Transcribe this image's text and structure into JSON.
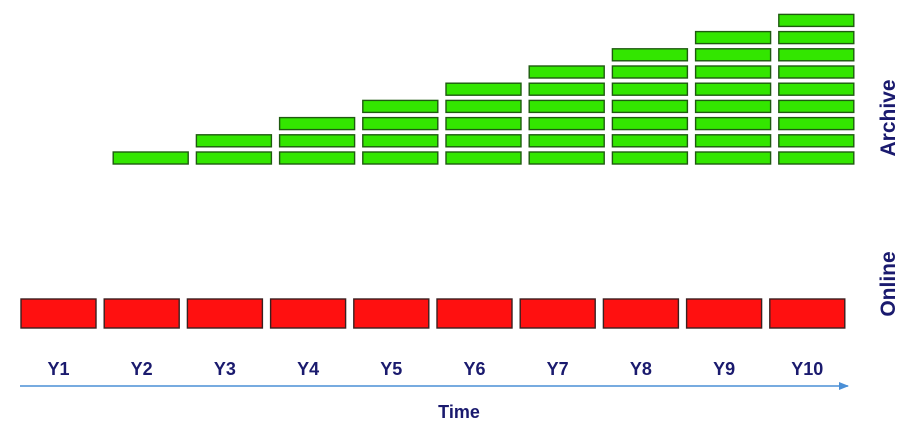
{
  "diagram": {
    "years": [
      "Y1",
      "Y2",
      "Y3",
      "Y4",
      "Y5",
      "Y6",
      "Y7",
      "Y8",
      "Y9",
      "Y10"
    ],
    "archive_counts": [
      0,
      1,
      2,
      3,
      4,
      5,
      6,
      7,
      8,
      9
    ],
    "online_counts": [
      1,
      1,
      1,
      1,
      1,
      1,
      1,
      1,
      1,
      1
    ],
    "archive_label": "Archive",
    "online_label": "Online",
    "time_label": "Time",
    "colors": {
      "archive": "#33e600",
      "online": "#ff1010",
      "online_highlight": "#d40a0a",
      "text": "#1a1a6e",
      "axis": "#4a8fd6"
    }
  }
}
